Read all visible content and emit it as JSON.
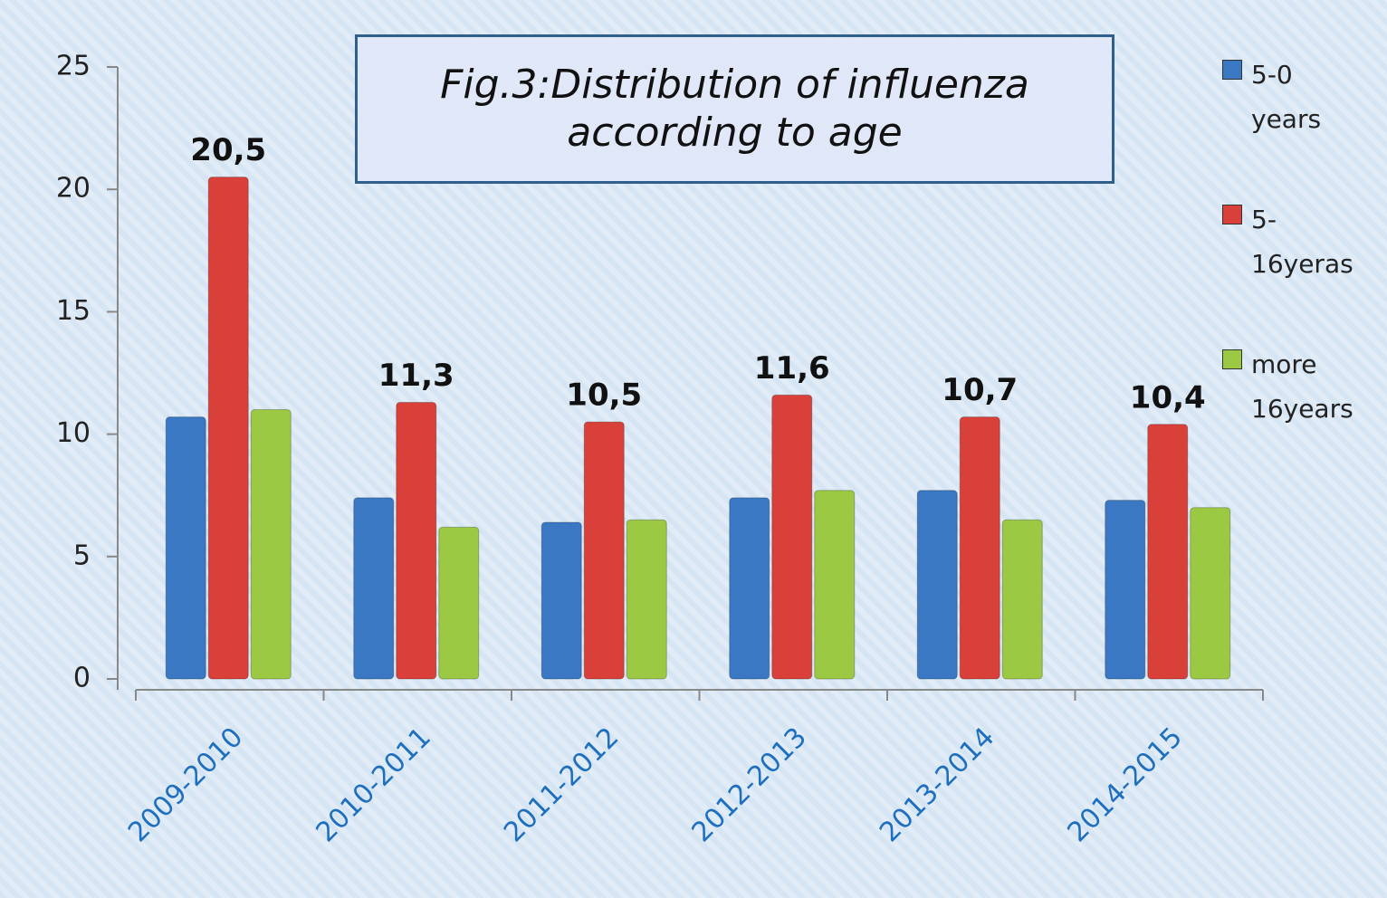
{
  "chart_data": {
    "type": "bar",
    "title": "Fig.3:Distribution of influenza according to age",
    "categories": [
      "2009-2010",
      "2010-2011",
      "2011-2012",
      "2012-2013",
      "2013-2014",
      "2014-2015"
    ],
    "series": [
      {
        "name": "5-0 years",
        "color": "#3a78c4",
        "values": [
          10.7,
          7.4,
          6.4,
          7.4,
          7.7,
          7.3
        ]
      },
      {
        "name": "5-16yeras",
        "color": "#d9403a",
        "values": [
          20.5,
          11.3,
          10.5,
          11.6,
          10.7,
          10.4
        ],
        "value_labels": [
          "20,5",
          "11,3",
          "10,5",
          "11,6",
          "10,7",
          "10,4"
        ]
      },
      {
        "name": "more 16years",
        "color": "#9cc943",
        "values": [
          11.0,
          6.2,
          6.5,
          7.7,
          6.5,
          7.0
        ]
      }
    ],
    "ylim": [
      0,
      25
    ],
    "yticks": [
      0,
      5,
      10,
      15,
      20,
      25
    ],
    "legend": "right"
  }
}
